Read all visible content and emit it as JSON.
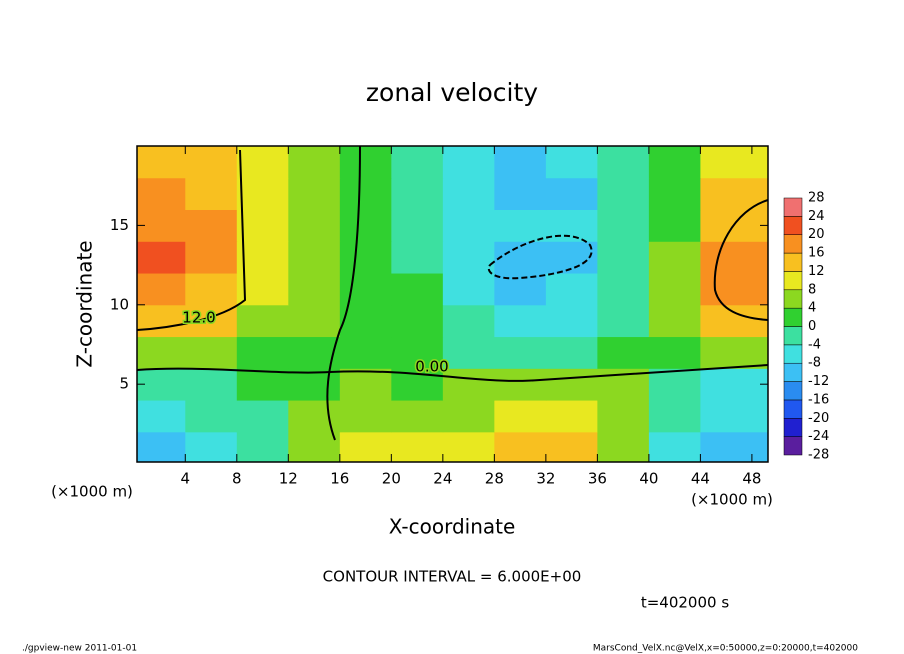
{
  "chart_data": {
    "type": "heatmap",
    "title": "zonal velocity",
    "xlabel": "X-coordinate",
    "ylabel": "Z-coordinate",
    "xunit": "(×1000 m)",
    "yunit": "(×1000 m)",
    "xlim": [
      0.25,
      49.25
    ],
    "ylim": [
      0.1,
      20
    ],
    "xticks": [
      4,
      8,
      12,
      16,
      20,
      24,
      28,
      32,
      36,
      40,
      44,
      48
    ],
    "yticks": [
      5,
      10,
      15
    ],
    "x": [
      2,
      6,
      10,
      14,
      18,
      22,
      26,
      30,
      34,
      38,
      42,
      46
    ],
    "y": [
      1,
      3,
      5,
      7,
      9,
      11,
      13,
      15,
      17,
      19
    ],
    "z": [
      [
        -10,
        -8,
        -4,
        6,
        8,
        8,
        10,
        14,
        12,
        6,
        -6,
        -12
      ],
      [
        -6,
        -4,
        -2,
        4,
        6,
        6,
        6,
        8,
        10,
        6,
        -4,
        -8
      ],
      [
        -2,
        -2,
        0,
        2,
        4,
        2,
        4,
        4,
        4,
        4,
        -2,
        -6
      ],
      [
        4,
        4,
        2,
        2,
        2,
        0,
        -2,
        -2,
        -2,
        0,
        2,
        4
      ],
      [
        14,
        12,
        6,
        4,
        2,
        0,
        -4,
        -6,
        -6,
        -2,
        6,
        12
      ],
      [
        18,
        14,
        8,
        4,
        2,
        0,
        -6,
        -10,
        -8,
        -4,
        4,
        16
      ],
      [
        20,
        16,
        10,
        4,
        2,
        -2,
        -8,
        -12,
        -10,
        -4,
        4,
        16
      ],
      [
        18,
        16,
        10,
        4,
        2,
        -2,
        -6,
        -8,
        -8,
        -4,
        2,
        14
      ],
      [
        16,
        14,
        8,
        4,
        2,
        -2,
        -8,
        -10,
        -10,
        -4,
        2,
        12
      ],
      [
        14,
        12,
        8,
        4,
        2,
        -2,
        -8,
        -10,
        -8,
        -4,
        2,
        8
      ]
    ],
    "levels": [
      -28,
      -24,
      -20,
      -16,
      -12,
      -8,
      -4,
      0,
      4,
      8,
      12,
      16,
      20,
      24,
      28
    ],
    "colors": [
      "#5a1e9e",
      "#2020d0",
      "#2058f0",
      "#2a8cf0",
      "#3cc0f4",
      "#40e0e0",
      "#3ce0a0",
      "#30d030",
      "#8cd820",
      "#e8e820",
      "#f8c020",
      "#f89020",
      "#f05020",
      "#f07070"
    ],
    "annotations": [
      "12.0",
      "0.00"
    ],
    "contour_note": "CONTOUR INTERVAL = 6.000E+00",
    "time_label": "t=402000 s",
    "footer_left": "./gpview-new  2011-01-01",
    "footer_right": "MarsCond_VelX.nc@VelX,x=0:50000,z=0:20000,t=402000"
  }
}
